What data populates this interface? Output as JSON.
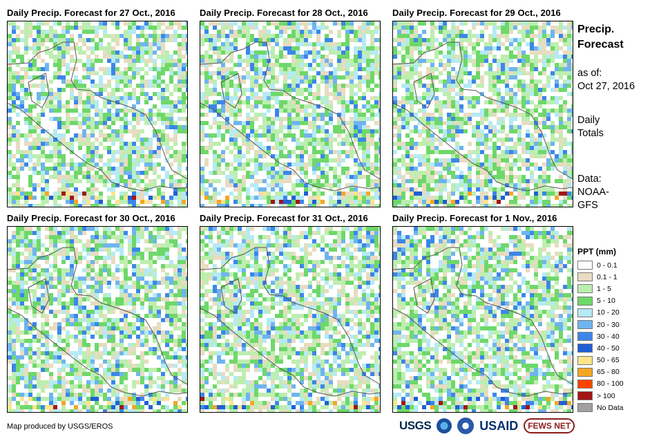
{
  "panels": [
    {
      "title": "Daily Precip. Forecast for 27 Oct., 2016"
    },
    {
      "title": "Daily Precip. Forecast for 28 Oct., 2016"
    },
    {
      "title": "Daily Precip. Forecast for 29 Oct., 2016"
    },
    {
      "title": "Daily Precip. Forecast for 30 Oct., 2016"
    },
    {
      "title": "Daily Precip. Forecast for 31 Oct., 2016"
    },
    {
      "title": "Daily Precip. Forecast for 1 Nov., 2016"
    }
  ],
  "side": {
    "title_line1": "Precip.",
    "title_line2": "Forecast",
    "asof_label": "as of:",
    "asof_date": "Oct 27, 2016",
    "totals_line1": "Daily",
    "totals_line2": "Totals",
    "data_label": "Data:",
    "data_line1": "NOAA-",
    "data_line2": "GFS"
  },
  "legend": {
    "title": "PPT (mm)",
    "items": [
      {
        "label": "0 - 0.1",
        "color": "#ffffff"
      },
      {
        "label": "0.1 - 1",
        "color": "#e8dcc0"
      },
      {
        "label": "1 - 5",
        "color": "#bdeeb0"
      },
      {
        "label": "5 - 10",
        "color": "#6ed86a"
      },
      {
        "label": "10 - 20",
        "color": "#b5eaf5"
      },
      {
        "label": "20 - 30",
        "color": "#6fb4ee"
      },
      {
        "label": "30 - 40",
        "color": "#3c86ea"
      },
      {
        "label": "40 - 50",
        "color": "#1f5fd6"
      },
      {
        "label": "50 - 65",
        "color": "#ffe48a"
      },
      {
        "label": "65 - 80",
        "color": "#f5a623"
      },
      {
        "label": "80 - 100",
        "color": "#ff4400"
      },
      {
        "label": "> 100",
        "color": "#a31515"
      },
      {
        "label": "No Data",
        "color": "#a0a0a0"
      }
    ]
  },
  "credit": "Map produced by USGS/EROS",
  "logos": {
    "usgs": "USGS",
    "usaid": "USAID",
    "fews": "FEWS NET"
  }
}
